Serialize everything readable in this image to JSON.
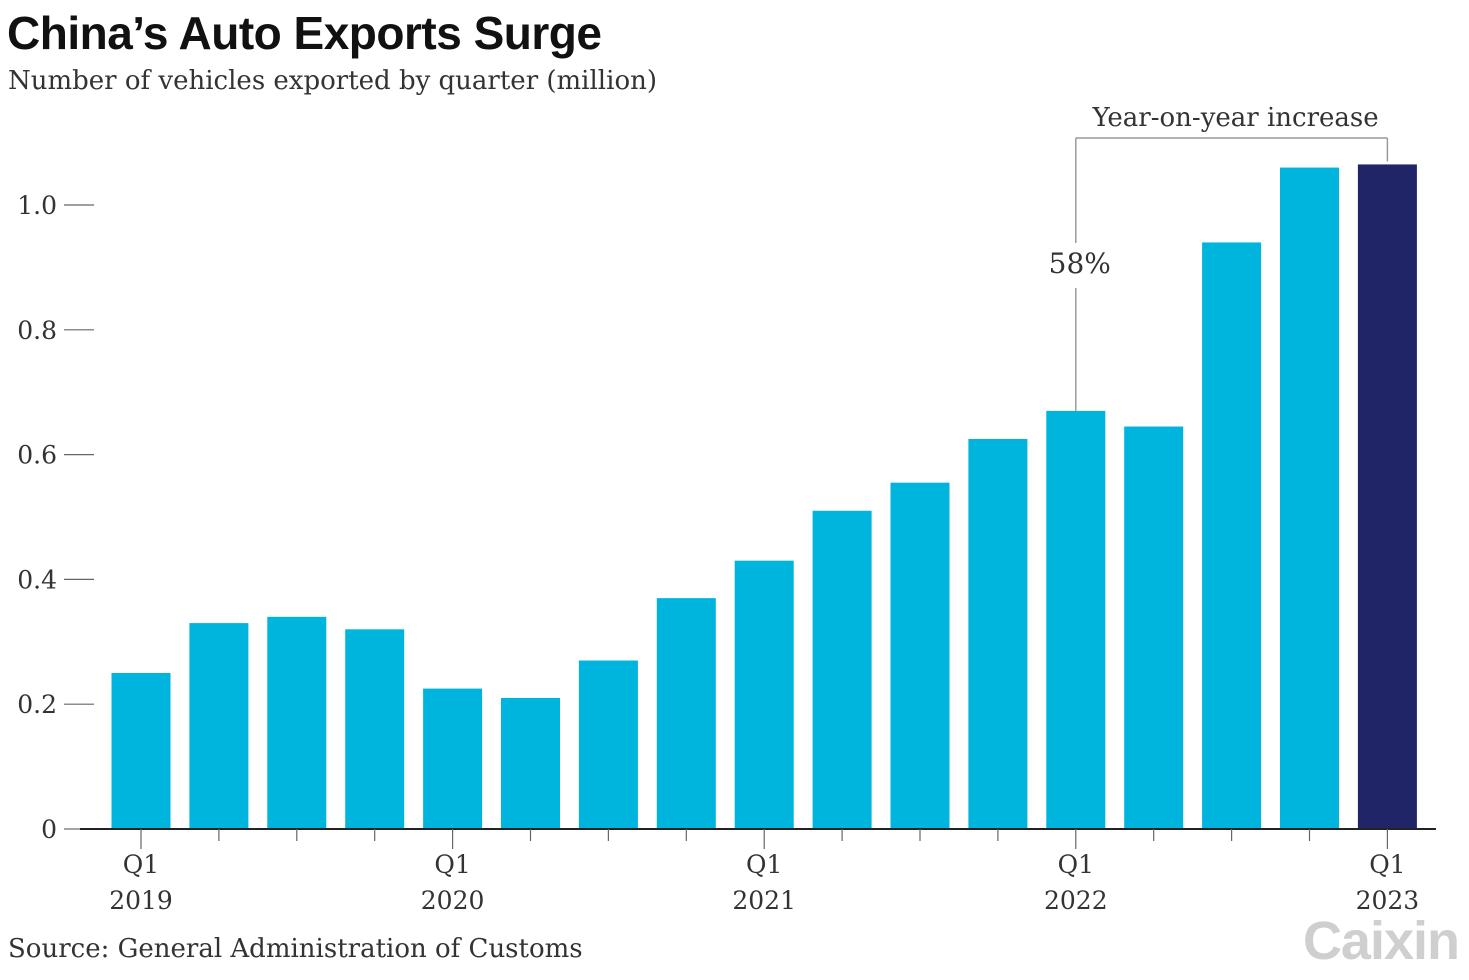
{
  "header": {
    "title": "China’s Auto Exports Surge",
    "subtitle": "Number of vehicles exported by quarter (million)"
  },
  "footer": {
    "source": "Source: General Administration of Customs",
    "logo": "Caixin"
  },
  "chart_data": {
    "type": "bar",
    "title": "China’s Auto Exports Surge",
    "subtitle": "Number of vehicles exported by quarter (million)",
    "xlabel": "",
    "ylabel": "",
    "ylim": [
      0,
      1.1
    ],
    "yticks": [
      0,
      0.2,
      0.4,
      0.6,
      0.8,
      1.0
    ],
    "ytick_labels": [
      "0",
      "0.2",
      "0.4",
      "0.6",
      "0.8",
      "1.0"
    ],
    "categories": [
      "Q1 2019",
      "Q2 2019",
      "Q3 2019",
      "Q4 2019",
      "Q1 2020",
      "Q2 2020",
      "Q3 2020",
      "Q4 2020",
      "Q1 2021",
      "Q2 2021",
      "Q3 2021",
      "Q4 2021",
      "Q1 2022",
      "Q2 2022",
      "Q3 2022",
      "Q4 2022",
      "Q1 2023"
    ],
    "values": [
      0.25,
      0.33,
      0.34,
      0.32,
      0.225,
      0.21,
      0.27,
      0.37,
      0.43,
      0.51,
      0.555,
      0.625,
      0.67,
      0.645,
      0.94,
      1.06,
      1.065
    ],
    "xtick_labels": [
      {
        "index": 0,
        "line1": "Q1",
        "line2": "2019"
      },
      {
        "index": 4,
        "line1": "Q1",
        "line2": "2020"
      },
      {
        "index": 8,
        "line1": "Q1",
        "line2": "2021"
      },
      {
        "index": 12,
        "line1": "Q1",
        "line2": "2022"
      },
      {
        "index": 16,
        "line1": "Q1",
        "line2": "2023"
      }
    ],
    "colors": {
      "bar": "#00b5dd",
      "highlight": "#1f2566",
      "axis": "#222222",
      "tick": "#666666",
      "annotation_line": "#9a9a9a"
    },
    "highlight_index": 16,
    "grid": false,
    "annotation": {
      "label": "Year-on-year increase",
      "value_label": "58%",
      "from_index": 12,
      "to_index": 16
    }
  }
}
